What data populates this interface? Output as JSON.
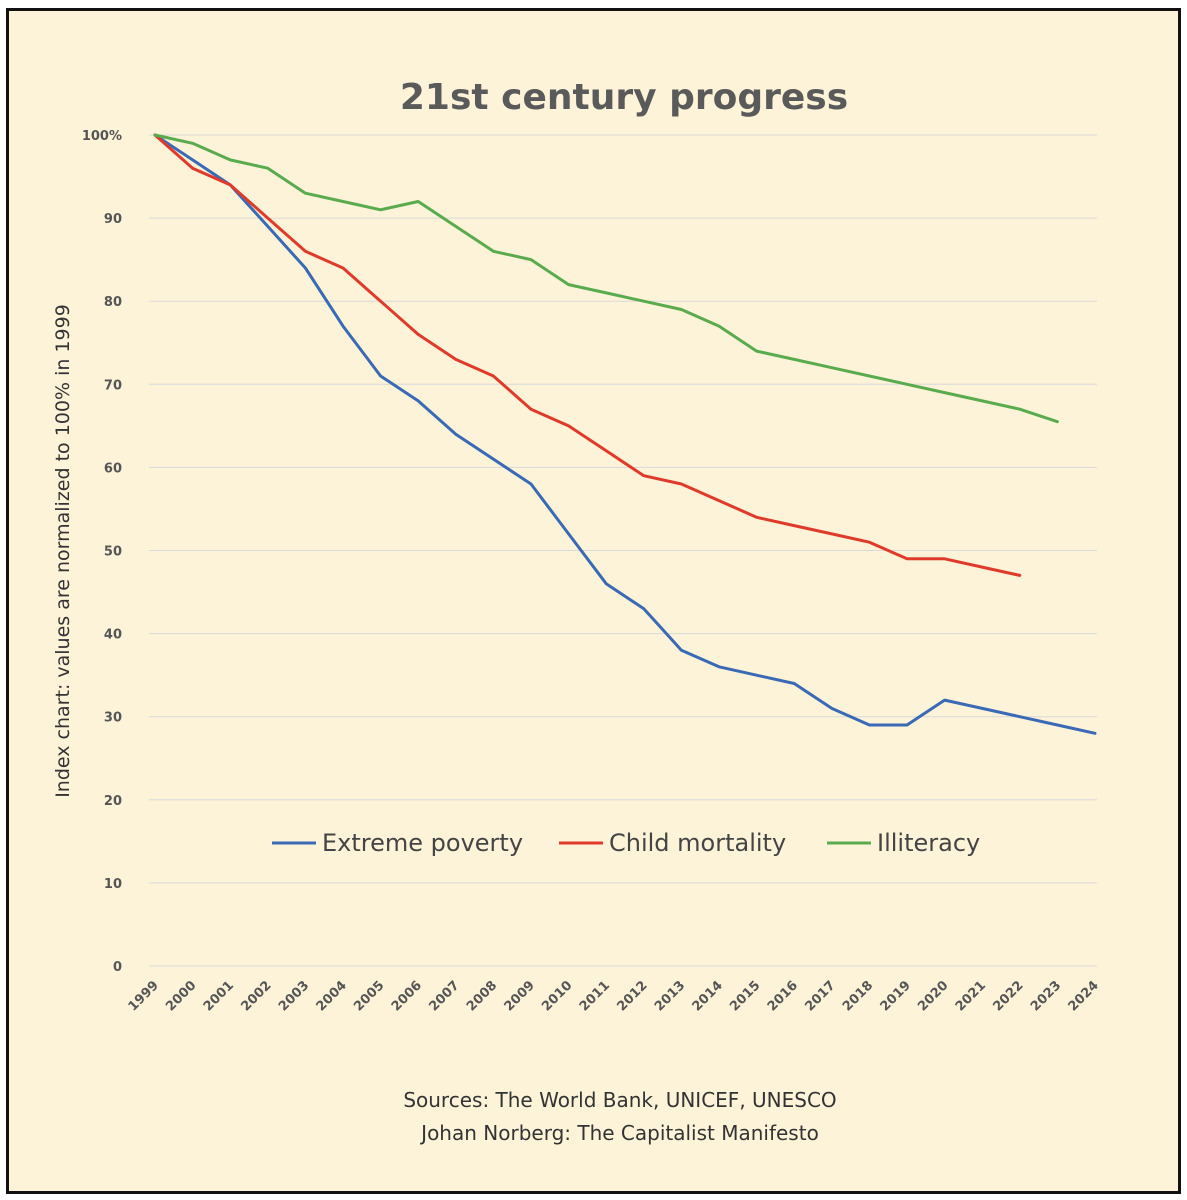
{
  "chart_data": {
    "type": "line",
    "title": "21st century progress",
    "ylabel": "Index chart: values are normalized to 100% in 1999",
    "xlabel": "",
    "ylim": [
      0,
      100
    ],
    "yticks": [
      {
        "value": 0,
        "label": "0"
      },
      {
        "value": 10,
        "label": "10"
      },
      {
        "value": 20,
        "label": "20"
      },
      {
        "value": 30,
        "label": "30"
      },
      {
        "value": 40,
        "label": "40"
      },
      {
        "value": 50,
        "label": "50"
      },
      {
        "value": 60,
        "label": "60"
      },
      {
        "value": 70,
        "label": "70"
      },
      {
        "value": 80,
        "label": "80"
      },
      {
        "value": 90,
        "label": "90"
      },
      {
        "value": 100,
        "label": "100%"
      }
    ],
    "categories": [
      "1999",
      "2000",
      "2001",
      "2002",
      "2003",
      "2004",
      "2005",
      "2006",
      "2007",
      "2008",
      "2009",
      "2010",
      "2011",
      "2012",
      "2013",
      "2014",
      "2015",
      "2016",
      "2017",
      "2018",
      "2019",
      "2020",
      "2021",
      "2022",
      "2023",
      "2024"
    ],
    "series": [
      {
        "name": "Extreme poverty",
        "color": "#3a6ab5",
        "values": [
          100,
          97,
          94,
          89,
          84,
          77,
          71,
          68,
          64,
          61,
          58,
          52,
          46,
          43,
          38,
          36,
          35,
          34,
          31,
          29,
          29,
          32,
          31,
          30,
          29,
          28
        ]
      },
      {
        "name": "Child mortality",
        "color": "#e03a2a",
        "values": [
          100,
          96,
          94,
          90,
          86,
          84,
          80,
          76,
          73,
          71,
          67,
          65,
          62,
          59,
          58,
          56,
          54,
          53,
          52,
          51,
          49,
          49,
          48,
          47,
          null,
          null
        ]
      },
      {
        "name": "Illiteracy",
        "color": "#5aab4e",
        "values": [
          100,
          99,
          97,
          96,
          93,
          92,
          91,
          92,
          89,
          86,
          85,
          82,
          81,
          80,
          79,
          77,
          74,
          73,
          72,
          71,
          70,
          69,
          68,
          67,
          65.5,
          null
        ]
      }
    ],
    "legend": "inside-bottom-center",
    "grid": true
  },
  "sources": {
    "line1": "Sources: The World Bank, UNICEF, UNESCO",
    "line2": "Johan Norberg: The Capitalist Manifesto"
  }
}
